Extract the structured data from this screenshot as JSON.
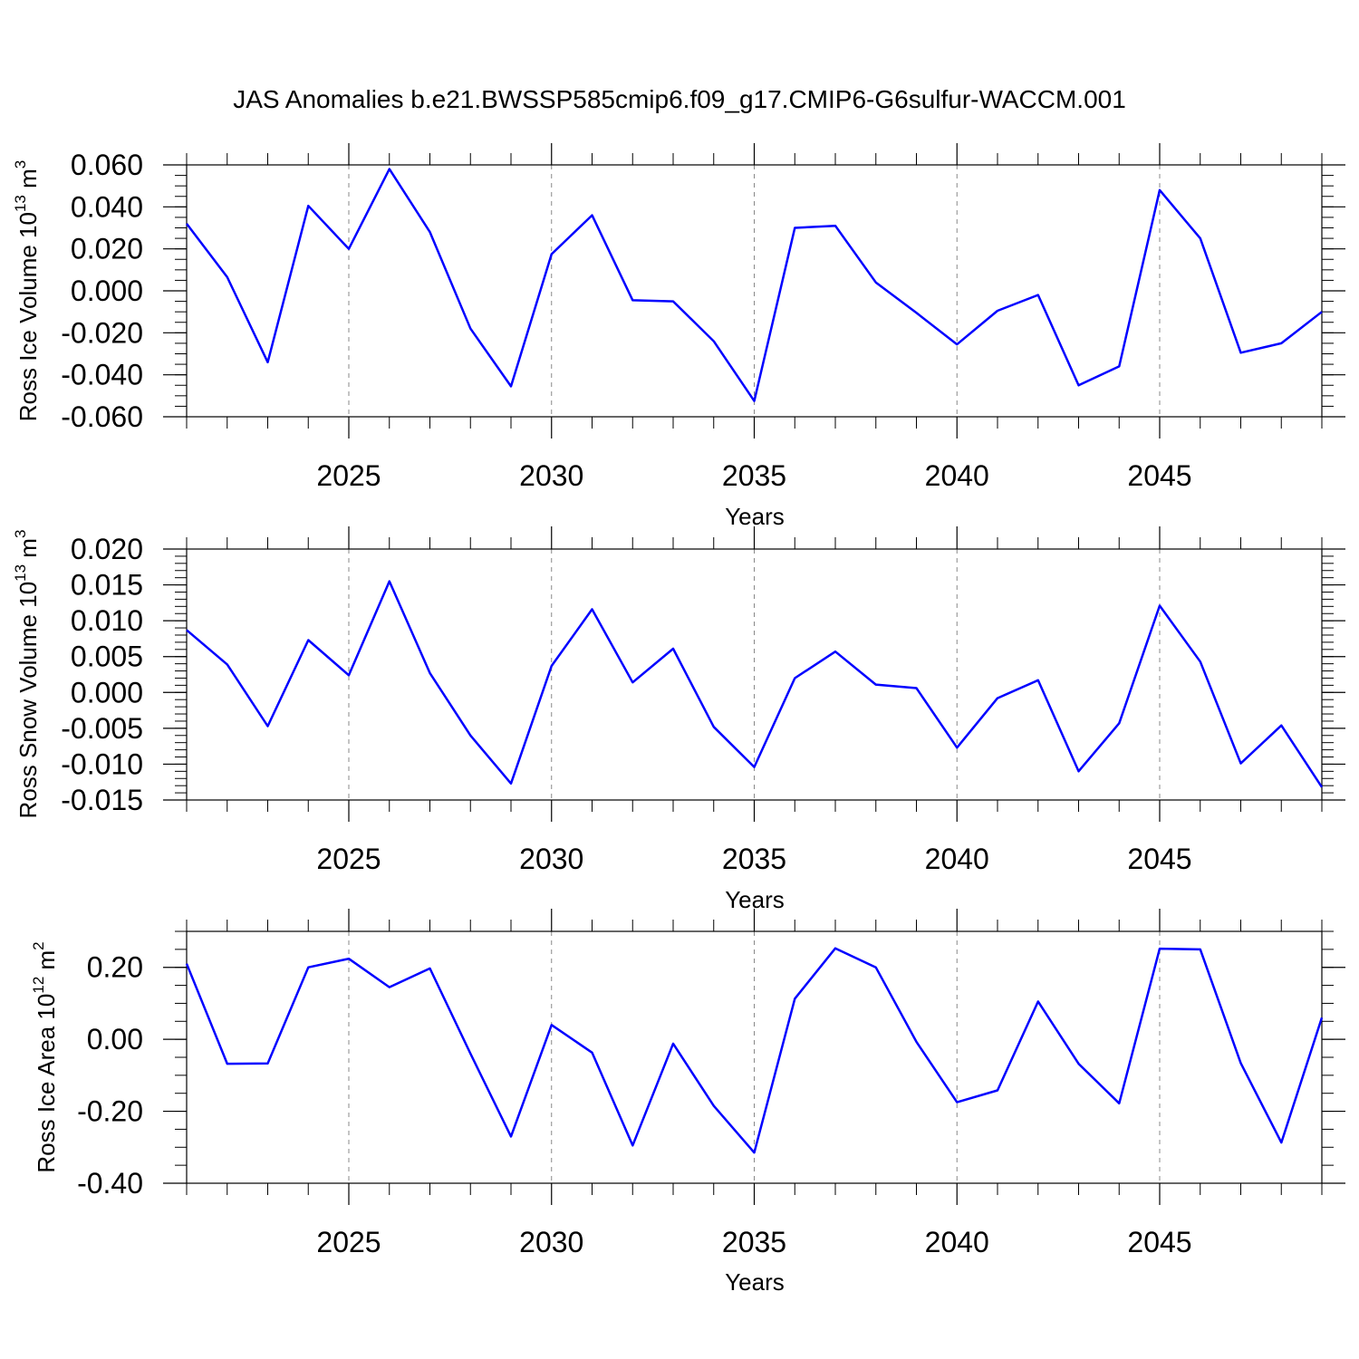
{
  "title": "JAS Anomalies b.e21.BWSSP585cmip6.f09_g17.CMIP6-G6sulfur-WACCM.001",
  "colors": {
    "line": "#0000ff",
    "axis": "#000000",
    "grid": "#888888"
  },
  "chart_data": [
    {
      "type": "line",
      "ylabel": "Ross Ice Volume 10",
      "ylabel_exp": "13",
      "ylabel_unit": " m",
      "ylabel_unit_exp": "3",
      "xlabel": "Years",
      "xlim": [
        2021,
        2049
      ],
      "ylim": [
        -0.06,
        0.06
      ],
      "x_ticks": [
        "2025",
        "2030",
        "2035",
        "2040",
        "2045"
      ],
      "y_ticks": [
        "0.060",
        "0.040",
        "0.020",
        "0.000",
        "-0.020",
        "-0.040",
        "-0.060"
      ],
      "x": [
        2021,
        2022,
        2023,
        2024,
        2025,
        2026,
        2027,
        2028,
        2029,
        2030,
        2031,
        2032,
        2033,
        2034,
        2035,
        2036,
        2037,
        2038,
        2039,
        2040,
        2041,
        2042,
        2043,
        2044,
        2045,
        2046,
        2047,
        2048,
        2049
      ],
      "values": [
        0.032,
        0.0065,
        -0.034,
        0.0405,
        0.02,
        0.058,
        0.028,
        -0.018,
        -0.0455,
        0.0175,
        0.036,
        -0.0045,
        -0.005,
        -0.024,
        -0.0525,
        0.03,
        0.031,
        0.004,
        -0.0105,
        -0.0255,
        -0.0095,
        -0.002,
        -0.045,
        -0.036,
        0.048,
        0.025,
        -0.0295,
        -0.025,
        -0.01
      ]
    },
    {
      "type": "line",
      "ylabel": "Ross Snow Volume 10",
      "ylabel_exp": "13",
      "ylabel_unit": " m",
      "ylabel_unit_exp": "3",
      "xlabel": "Years",
      "xlim": [
        2021,
        2049
      ],
      "ylim": [
        -0.015,
        0.02
      ],
      "x_ticks": [
        "2025",
        "2030",
        "2035",
        "2040",
        "2045"
      ],
      "y_ticks": [
        "0.020",
        "0.015",
        "0.010",
        "0.005",
        "0.000",
        "-0.005",
        "-0.010",
        "-0.015"
      ],
      "x": [
        2021,
        2022,
        2023,
        2024,
        2025,
        2026,
        2027,
        2028,
        2029,
        2030,
        2031,
        2032,
        2033,
        2034,
        2035,
        2036,
        2037,
        2038,
        2039,
        2040,
        2041,
        2042,
        2043,
        2044,
        2045,
        2046,
        2047,
        2048,
        2049
      ],
      "values": [
        0.0087,
        0.0039,
        -0.0047,
        0.0073,
        0.0024,
        0.0155,
        0.0027,
        -0.006,
        -0.0127,
        0.0037,
        0.0116,
        0.0014,
        0.0061,
        -0.0048,
        -0.0104,
        0.002,
        0.0057,
        0.0011,
        0.0006,
        -0.0077,
        -0.0008,
        0.0017,
        -0.011,
        -0.0043,
        0.0121,
        0.0043,
        -0.0099,
        -0.0046,
        -0.0132
      ]
    },
    {
      "type": "line",
      "ylabel": "Ross Ice Area 10",
      "ylabel_exp": "12",
      "ylabel_unit": " m",
      "ylabel_unit_exp": "2",
      "xlabel": "Years",
      "xlim": [
        2021,
        2049
      ],
      "ylim": [
        -0.4,
        0.3
      ],
      "x_ticks": [
        "2025",
        "2030",
        "2035",
        "2040",
        "2045"
      ],
      "y_ticks": [
        "0.20",
        "0.00",
        "-0.20",
        "-0.40"
      ],
      "x": [
        2021,
        2022,
        2023,
        2024,
        2025,
        2026,
        2027,
        2028,
        2029,
        2030,
        2031,
        2032,
        2033,
        2034,
        2035,
        2036,
        2037,
        2038,
        2039,
        2040,
        2041,
        2042,
        2043,
        2044,
        2045,
        2046,
        2047,
        2048,
        2049
      ],
      "values": [
        0.21,
        -0.068,
        -0.067,
        0.2,
        0.224,
        0.145,
        0.197,
        -0.04,
        -0.27,
        0.04,
        -0.037,
        -0.295,
        -0.012,
        -0.185,
        -0.315,
        0.113,
        0.253,
        0.2,
        -0.007,
        -0.175,
        -0.142,
        0.105,
        -0.068,
        -0.178,
        0.252,
        0.25,
        -0.066,
        -0.287,
        0.06
      ]
    }
  ]
}
